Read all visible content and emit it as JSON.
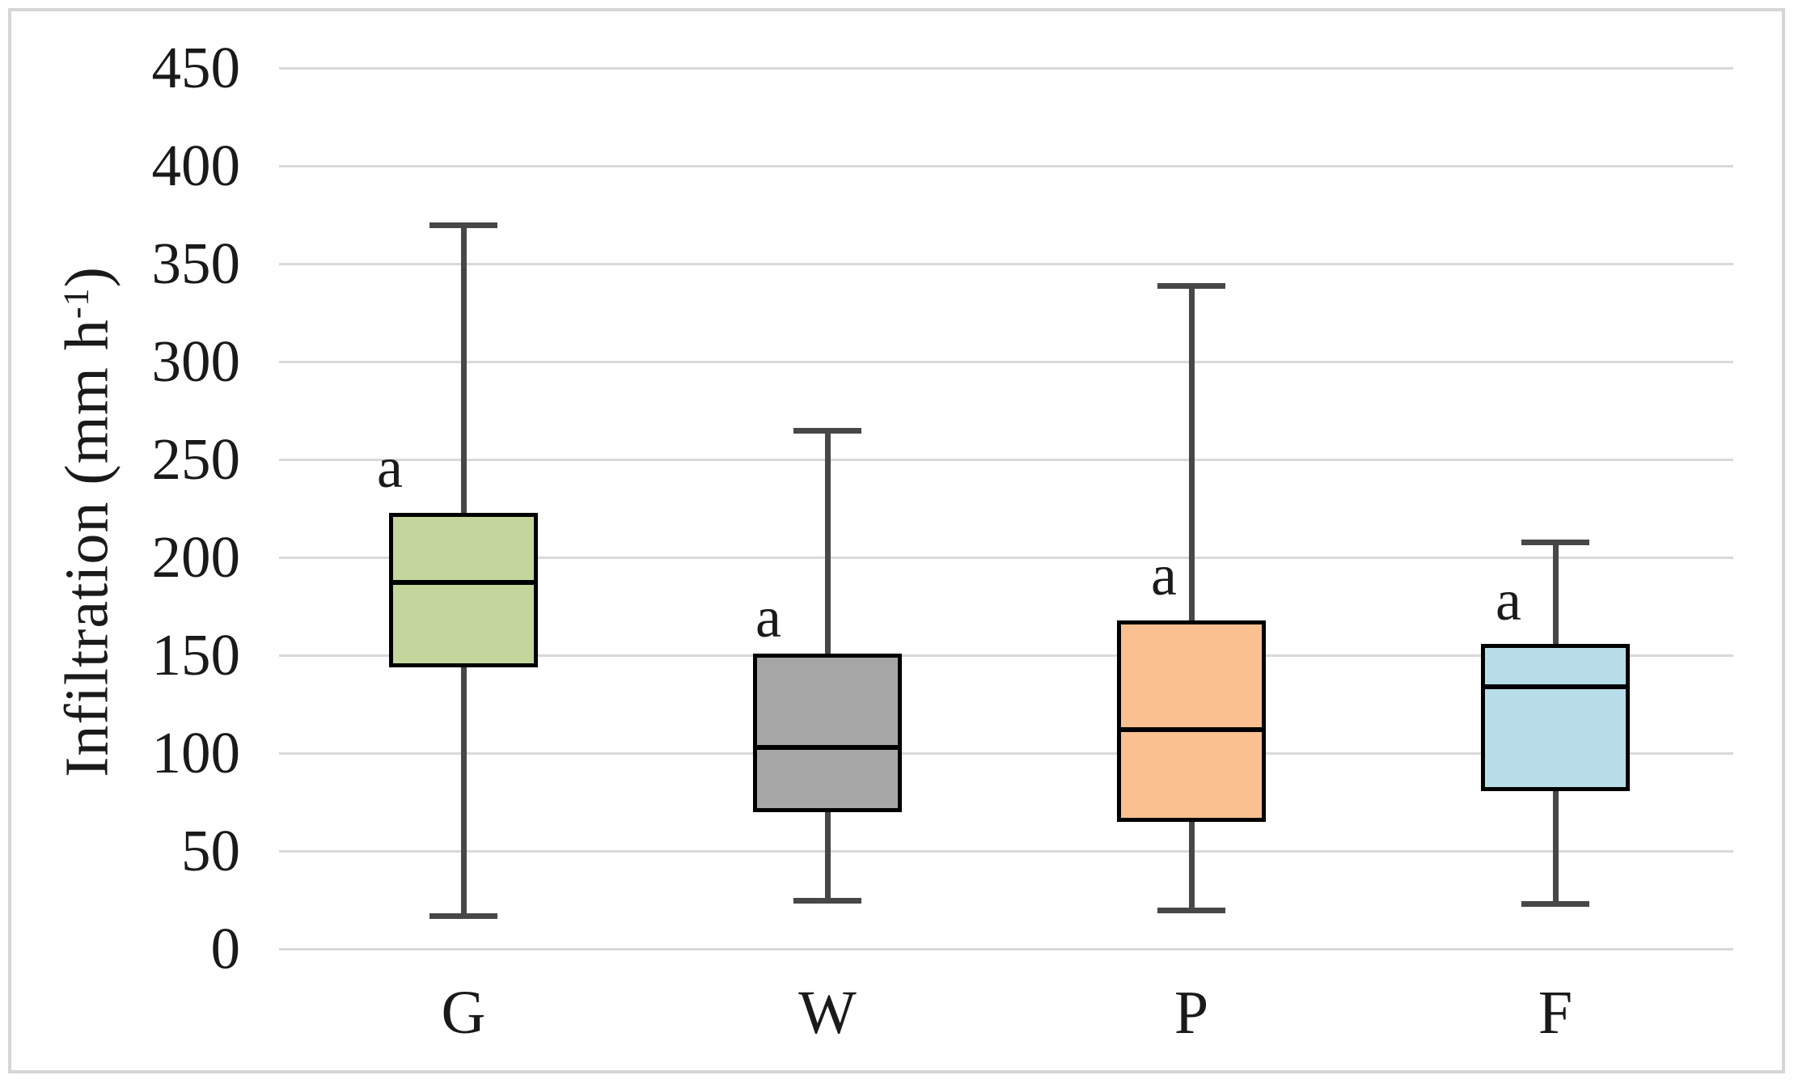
{
  "chart_data": {
    "type": "box",
    "title": "",
    "xlabel": "",
    "ylabel": "Infiltration (mm h⁻¹)",
    "ylabel_parts": {
      "prefix": "Infiltration (mm h",
      "superscript": "-1",
      "suffix": ")"
    },
    "ylim": [
      0,
      450
    ],
    "ytick_interval": 50,
    "yticks": [
      "450",
      "400",
      "350",
      "300",
      "250",
      "200",
      "150",
      "100",
      "50",
      "0"
    ],
    "grid": "horizontal-only",
    "legend": "none",
    "categories": [
      "G",
      "W",
      "P",
      "F"
    ],
    "series": [
      {
        "name": "G",
        "min": 17,
        "q1": 145,
        "median": 187,
        "q3": 222,
        "max": 370,
        "fill_color": "#c3d69b",
        "significance_label": "a"
      },
      {
        "name": "W",
        "min": 25,
        "q1": 71,
        "median": 103,
        "q3": 150,
        "max": 265,
        "fill_color": "#a6a6a6",
        "significance_label": "a"
      },
      {
        "name": "P",
        "min": 20,
        "q1": 66,
        "median": 112,
        "q3": 167,
        "max": 339,
        "fill_color": "#fac090",
        "significance_label": "a"
      },
      {
        "name": "F",
        "min": 23,
        "q1": 82,
        "median": 134,
        "q3": 155,
        "max": 208,
        "fill_color": "#b7dde8",
        "significance_label": "a"
      }
    ],
    "colors": {
      "box_border": "#000000",
      "median_line": "#000000",
      "whisker": "#474747",
      "gridline": "#d9d9d9",
      "text": "#1a1a1a",
      "figure_border": "#d5d5d5",
      "background": "#ffffff"
    }
  }
}
